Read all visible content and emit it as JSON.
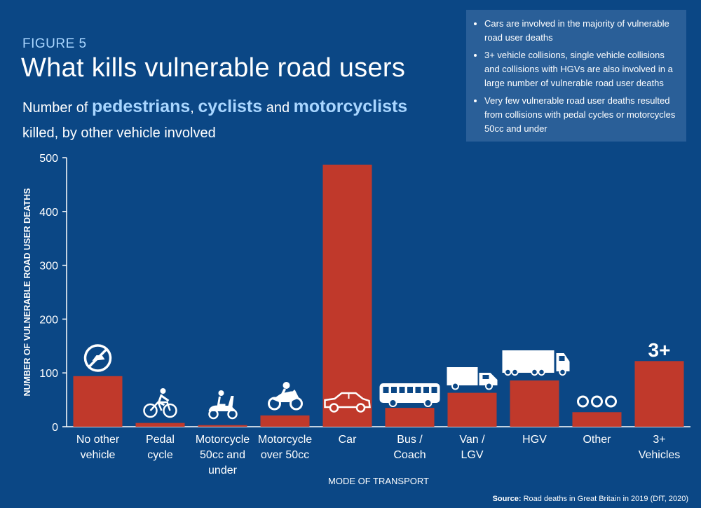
{
  "figure_label": "FIGURE 5",
  "title": "What kills vulnerable road users",
  "subtitle": {
    "prefix": "Number of ",
    "pedestrians": "pedestrians",
    "comma": ",",
    "cyclists": "cyclists",
    "and": " and ",
    "motorcyclists": "motorcyclists",
    "suffix": "killed, by other vehicle involved"
  },
  "notes": [
    "Cars are involved in the majority of vulnerable road user deaths",
    "3+ vehicle collisions, single vehicle collisions and collisions with HGVs are also involved in a large number of vulnerable road user deaths",
    "Very few vulnerable road user deaths resulted from collisions with pedal cycles or motorcycles 50cc and under"
  ],
  "source": {
    "label": "Source:",
    "text": " Road deaths in Great Britain in 2019 (DfT, 2020)"
  },
  "colors": {
    "background": "#0b4785",
    "bar": "#c0392b",
    "highlight": "#a9d6ff",
    "notes_box": "#2a5f98"
  },
  "chart_data": {
    "type": "bar",
    "title": "What kills vulnerable road users",
    "xlabel": "MODE OF TRANSPORT",
    "ylabel": "NUMBER OF VULNERABLE ROAD USER DEATHS",
    "ylim": [
      0,
      500
    ],
    "yticks": [
      0,
      100,
      200,
      300,
      400,
      500
    ],
    "grid": false,
    "categories": [
      [
        "No other",
        "vehicle"
      ],
      [
        "Pedal",
        "cycle"
      ],
      [
        "Motorcycle",
        "50cc and",
        "under"
      ],
      [
        "Motorcycle",
        "over 50cc"
      ],
      [
        "Car"
      ],
      [
        "Bus /",
        "Coach"
      ],
      [
        "Van /",
        "LGV"
      ],
      [
        "HGV"
      ],
      [
        "Other"
      ],
      [
        "3+",
        "Vehicles"
      ]
    ],
    "values": [
      94,
      7,
      3,
      21,
      487,
      35,
      63,
      86,
      27,
      122
    ],
    "icons": [
      "no-vehicle-icon",
      "bicycle-icon",
      "scooter-icon",
      "motorcycle-icon",
      "car-icon",
      "bus-icon",
      "van-icon",
      "truck-icon",
      "other-dots-icon",
      "three-plus-icon"
    ],
    "annotations": {
      "three_plus_text": "3+"
    }
  }
}
